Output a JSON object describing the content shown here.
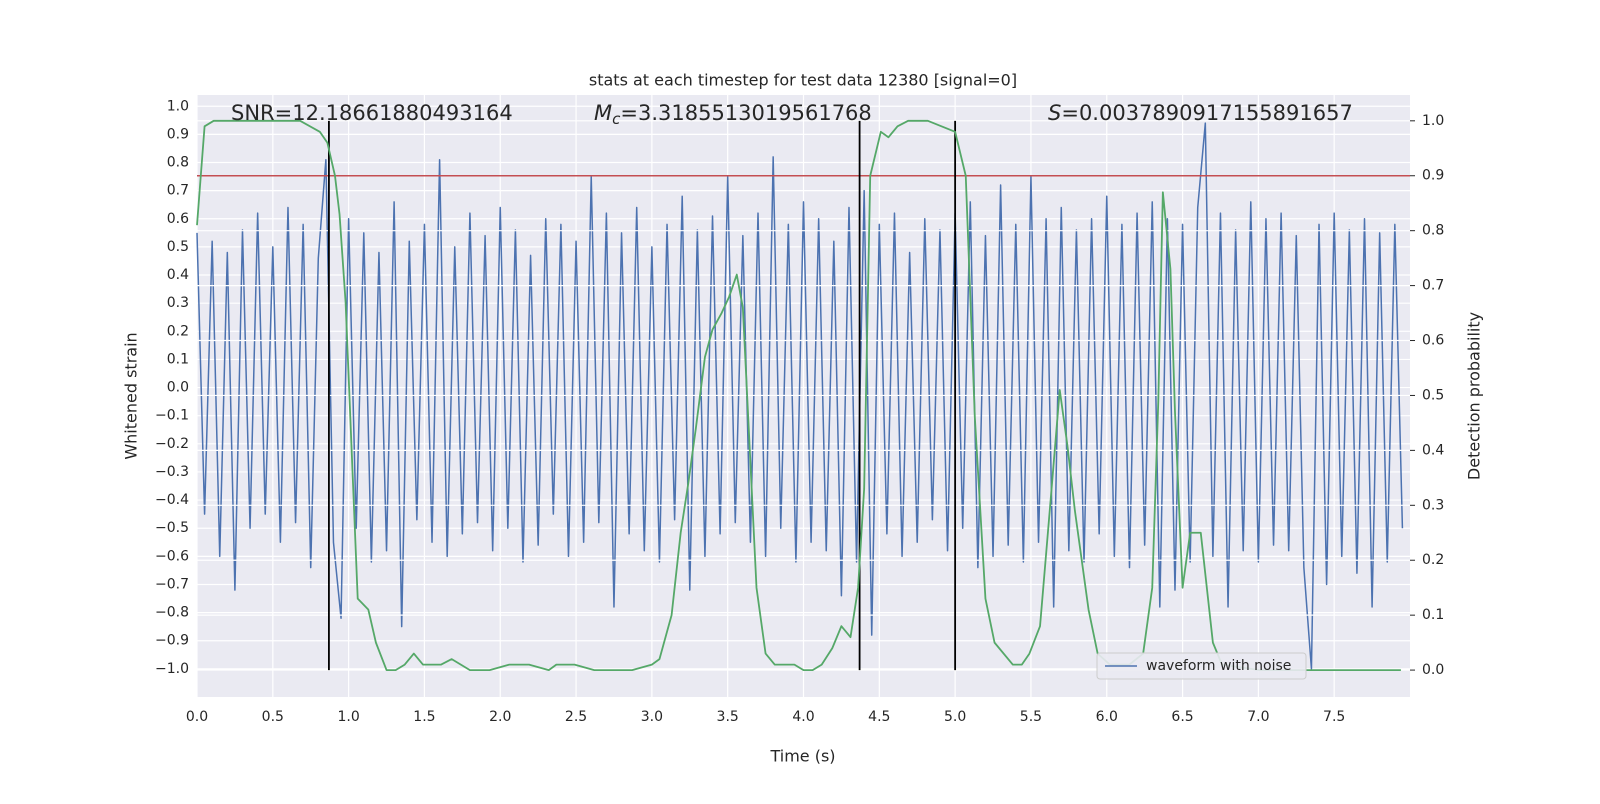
{
  "chart_data": {
    "type": "line",
    "title": "stats at each timestep for test data 12380 [signal=0]",
    "xlabel": "Time (s)",
    "ylabel": "Whitened strain",
    "y2label": "Detection probability",
    "annotations": [
      {
        "text": "SNR=12.18661880493164"
      },
      {
        "italic": "M",
        "sub": "c",
        "text": "=3.3185513019561768"
      },
      {
        "italic": "S",
        "text": "=0.0037890917155891657"
      }
    ],
    "xlim": [
      0,
      8
    ],
    "ylim": [
      -1.1,
      1.04
    ],
    "y2lim": [
      -0.049,
      1.047
    ],
    "xticks": [
      {
        "value": 0,
        "label": "0.0"
      },
      {
        "value": 0.5,
        "label": "0.5"
      },
      {
        "value": 1,
        "label": "1.0"
      },
      {
        "value": 1.5,
        "label": "1.5"
      },
      {
        "value": 2,
        "label": "2.0"
      },
      {
        "value": 2.5,
        "label": "2.5"
      },
      {
        "value": 3,
        "label": "3.0"
      },
      {
        "value": 3.5,
        "label": "3.5"
      },
      {
        "value": 4,
        "label": "4.0"
      },
      {
        "value": 4.5,
        "label": "4.5"
      },
      {
        "value": 5,
        "label": "5.0"
      },
      {
        "value": 5.5,
        "label": "5.5"
      },
      {
        "value": 6,
        "label": "6.0"
      },
      {
        "value": 6.5,
        "label": "6.5"
      },
      {
        "value": 7,
        "label": "7.0"
      },
      {
        "value": 7.5,
        "label": "7.5"
      }
    ],
    "yticks": [
      {
        "value": -1,
        "label": "−1.0"
      },
      {
        "value": -0.9,
        "label": "−0.9"
      },
      {
        "value": -0.8,
        "label": "−0.8"
      },
      {
        "value": -0.7,
        "label": "−0.7"
      },
      {
        "value": -0.6,
        "label": "−0.6"
      },
      {
        "value": -0.5,
        "label": "−0.5"
      },
      {
        "value": -0.4,
        "label": "−0.4"
      },
      {
        "value": -0.3,
        "label": "−0.3"
      },
      {
        "value": -0.2,
        "label": "−0.2"
      },
      {
        "value": -0.1,
        "label": "−0.1"
      },
      {
        "value": 0,
        "label": "0.0"
      },
      {
        "value": 0.1,
        "label": "0.1"
      },
      {
        "value": 0.2,
        "label": "0.2"
      },
      {
        "value": 0.3,
        "label": "0.3"
      },
      {
        "value": 0.4,
        "label": "0.4"
      },
      {
        "value": 0.5,
        "label": "0.5"
      },
      {
        "value": 0.6,
        "label": "0.6"
      },
      {
        "value": 0.7,
        "label": "0.7"
      },
      {
        "value": 0.8,
        "label": "0.8"
      },
      {
        "value": 0.9,
        "label": "0.9"
      },
      {
        "value": 1,
        "label": "1.0"
      }
    ],
    "y2ticks": [
      {
        "value": 0,
        "label": "0.0"
      },
      {
        "value": 0.1,
        "label": "0.1"
      },
      {
        "value": 0.2,
        "label": "0.2"
      },
      {
        "value": 0.3,
        "label": "0.3"
      },
      {
        "value": 0.4,
        "label": "0.4"
      },
      {
        "value": 0.5,
        "label": "0.5"
      },
      {
        "value": 0.6,
        "label": "0.6"
      },
      {
        "value": 0.7,
        "label": "0.7"
      },
      {
        "value": 0.8,
        "label": "0.8"
      },
      {
        "value": 0.9,
        "label": "0.9"
      },
      {
        "value": 1,
        "label": "1.0"
      }
    ],
    "grid": true,
    "legend": "lower right",
    "hlines": [
      {
        "y2": 0.9,
        "color": "#c44e52"
      }
    ],
    "vlines": {
      "x": [
        0.87,
        4.37,
        5.0
      ],
      "y2": [
        0,
        1
      ],
      "color": "#000000"
    },
    "series": [
      {
        "name": "waveform with noise",
        "color": "#4c72b0",
        "axis": "y",
        "x": [
          0,
          0.05,
          0.1,
          0.15,
          0.2,
          0.25,
          0.3,
          0.35,
          0.4,
          0.45,
          0.5,
          0.55,
          0.6,
          0.65,
          0.7,
          0.75,
          0.8,
          0.85,
          0.9,
          0.95,
          1,
          1.05,
          1.1,
          1.15,
          1.2,
          1.25,
          1.3,
          1.35,
          1.4,
          1.45,
          1.5,
          1.55,
          1.6,
          1.65,
          1.7,
          1.75,
          1.8,
          1.85,
          1.9,
          1.95,
          2,
          2.05,
          2.1,
          2.15,
          2.2,
          2.25,
          2.3,
          2.35,
          2.4,
          2.45,
          2.5,
          2.55,
          2.6,
          2.65,
          2.7,
          2.75,
          2.8,
          2.85,
          2.9,
          2.95,
          3,
          3.05,
          3.1,
          3.15,
          3.2,
          3.25,
          3.3,
          3.35,
          3.4,
          3.45,
          3.5,
          3.55,
          3.6,
          3.65,
          3.7,
          3.75,
          3.8,
          3.85,
          3.9,
          3.95,
          4,
          4.05,
          4.1,
          4.15,
          4.2,
          4.25,
          4.3,
          4.35,
          4.4,
          4.45,
          4.5,
          4.55,
          4.6,
          4.65,
          4.7,
          4.75,
          4.8,
          4.85,
          4.9,
          4.95,
          5,
          5.05,
          5.1,
          5.15,
          5.2,
          5.25,
          5.3,
          5.35,
          5.4,
          5.45,
          5.5,
          5.55,
          5.6,
          5.65,
          5.7,
          5.75,
          5.8,
          5.85,
          5.9,
          5.95,
          6,
          6.05,
          6.1,
          6.15,
          6.2,
          6.25,
          6.3,
          6.35,
          6.4,
          6.45,
          6.5,
          6.55,
          6.6,
          6.65,
          6.7,
          6.75,
          6.8,
          6.85,
          6.9,
          6.95,
          7,
          7.05,
          7.1,
          7.15,
          7.2,
          7.25,
          7.3,
          7.35,
          7.4,
          7.45,
          7.5,
          7.55,
          7.6,
          7.65,
          7.7,
          7.75,
          7.8,
          7.85,
          7.9,
          7.95
        ],
        "values": [
          0.55,
          -0.45,
          0.52,
          -0.6,
          0.48,
          -0.72,
          0.56,
          -0.5,
          0.62,
          -0.45,
          0.5,
          -0.55,
          0.64,
          -0.48,
          0.58,
          -0.64,
          0.46,
          0.81,
          -0.55,
          -0.82,
          0.6,
          -0.5,
          0.55,
          -0.62,
          0.48,
          -0.58,
          0.66,
          -0.85,
          0.52,
          -0.47,
          0.58,
          -0.55,
          0.81,
          -0.6,
          0.5,
          -0.52,
          0.62,
          -0.48,
          0.54,
          -0.58,
          0.64,
          -0.5,
          0.56,
          -0.62,
          0.47,
          -0.56,
          0.6,
          -0.45,
          0.58,
          -0.6,
          0.52,
          -0.55,
          0.75,
          -0.48,
          0.62,
          -0.78,
          0.55,
          -0.52,
          0.64,
          -0.58,
          0.5,
          -0.62,
          0.58,
          -0.47,
          0.68,
          -0.72,
          0.56,
          -0.6,
          0.61,
          -0.52,
          0.75,
          -0.48,
          0.54,
          -0.55,
          0.62,
          -0.6,
          0.82,
          -0.5,
          0.58,
          -0.62,
          0.66,
          -0.55,
          0.6,
          -0.58,
          0.52,
          -0.74,
          0.64,
          -0.62,
          0.7,
          -0.88,
          0.58,
          -0.52,
          0.62,
          -0.6,
          0.48,
          -0.55,
          0.6,
          -0.47,
          0.56,
          -0.58,
          0.62,
          -0.5,
          0.66,
          -0.64,
          0.54,
          -0.6,
          0.72,
          -0.56,
          0.58,
          -0.62,
          0.75,
          -0.55,
          0.6,
          -0.78,
          0.64,
          -0.58,
          0.56,
          -0.62,
          0.6,
          -0.52,
          0.68,
          -0.6,
          0.58,
          -0.64,
          0.62,
          -0.56,
          0.66,
          -0.78,
          0.6,
          -0.72,
          0.58,
          -0.62,
          0.64,
          0.94,
          -0.6,
          0.62,
          -0.78,
          0.56,
          -0.58,
          0.66,
          -0.62,
          0.6,
          -0.56,
          0.62,
          -0.58,
          0.54,
          -0.64,
          -1.0,
          0.58,
          -0.7,
          0.62,
          -0.6,
          0.56,
          -0.66,
          0.6,
          -0.78,
          0.55,
          -0.62,
          0.58,
          -0.5
        ]
      },
      {
        "color": "#55a868",
        "axis": "y2",
        "x": [
          0.0,
          0.05,
          0.11,
          0.28,
          0.68,
          0.81,
          0.86,
          0.91,
          0.94,
          0.98,
          1.06,
          1.13,
          1.18,
          1.25,
          1.31,
          1.37,
          1.43,
          1.49,
          1.55,
          1.61,
          1.68,
          1.74,
          1.8,
          1.93,
          2.06,
          2.19,
          2.32,
          2.37,
          2.43,
          2.49,
          2.62,
          2.74,
          2.87,
          3.0,
          3.05,
          3.13,
          3.19,
          3.24,
          3.29,
          3.35,
          3.4,
          3.46,
          3.51,
          3.56,
          3.6,
          3.63,
          3.69,
          3.75,
          3.81,
          3.88,
          3.94,
          4.0,
          4.06,
          4.12,
          4.19,
          4.25,
          4.31,
          4.36,
          4.4,
          4.44,
          4.51,
          4.56,
          4.62,
          4.69,
          4.82,
          4.91,
          5.0,
          5.07,
          5.13,
          5.2,
          5.26,
          5.38,
          5.44,
          5.49,
          5.56,
          5.63,
          5.69,
          5.74,
          5.79,
          5.88,
          5.94,
          6.02,
          6.15,
          6.24,
          6.3,
          6.34,
          6.37,
          6.42,
          6.45,
          6.5,
          6.55,
          6.62,
          6.7,
          6.76,
          7.01,
          7.21,
          7.94
        ],
        "values": [
          0.81,
          0.99,
          1.0,
          1.0,
          1.0,
          0.98,
          0.96,
          0.9,
          0.83,
          0.67,
          0.13,
          0.11,
          0.05,
          0.0,
          0.0,
          0.01,
          0.03,
          0.01,
          0.01,
          0.01,
          0.02,
          0.01,
          0.0,
          0.0,
          0.01,
          0.01,
          0.0,
          0.01,
          0.01,
          0.01,
          0.0,
          0.0,
          0.0,
          0.01,
          0.02,
          0.1,
          0.25,
          0.34,
          0.44,
          0.57,
          0.62,
          0.65,
          0.68,
          0.72,
          0.66,
          0.49,
          0.15,
          0.03,
          0.01,
          0.01,
          0.01,
          0.0,
          0.0,
          0.01,
          0.04,
          0.08,
          0.06,
          0.15,
          0.33,
          0.9,
          0.98,
          0.97,
          0.99,
          1.0,
          1.0,
          0.99,
          0.98,
          0.9,
          0.46,
          0.13,
          0.05,
          0.01,
          0.01,
          0.03,
          0.08,
          0.31,
          0.51,
          0.41,
          0.29,
          0.11,
          0.03,
          0.01,
          0.01,
          0.03,
          0.15,
          0.49,
          0.87,
          0.73,
          0.47,
          0.15,
          0.25,
          0.25,
          0.05,
          0.01,
          0.0,
          0.0,
          0.0
        ]
      }
    ]
  }
}
